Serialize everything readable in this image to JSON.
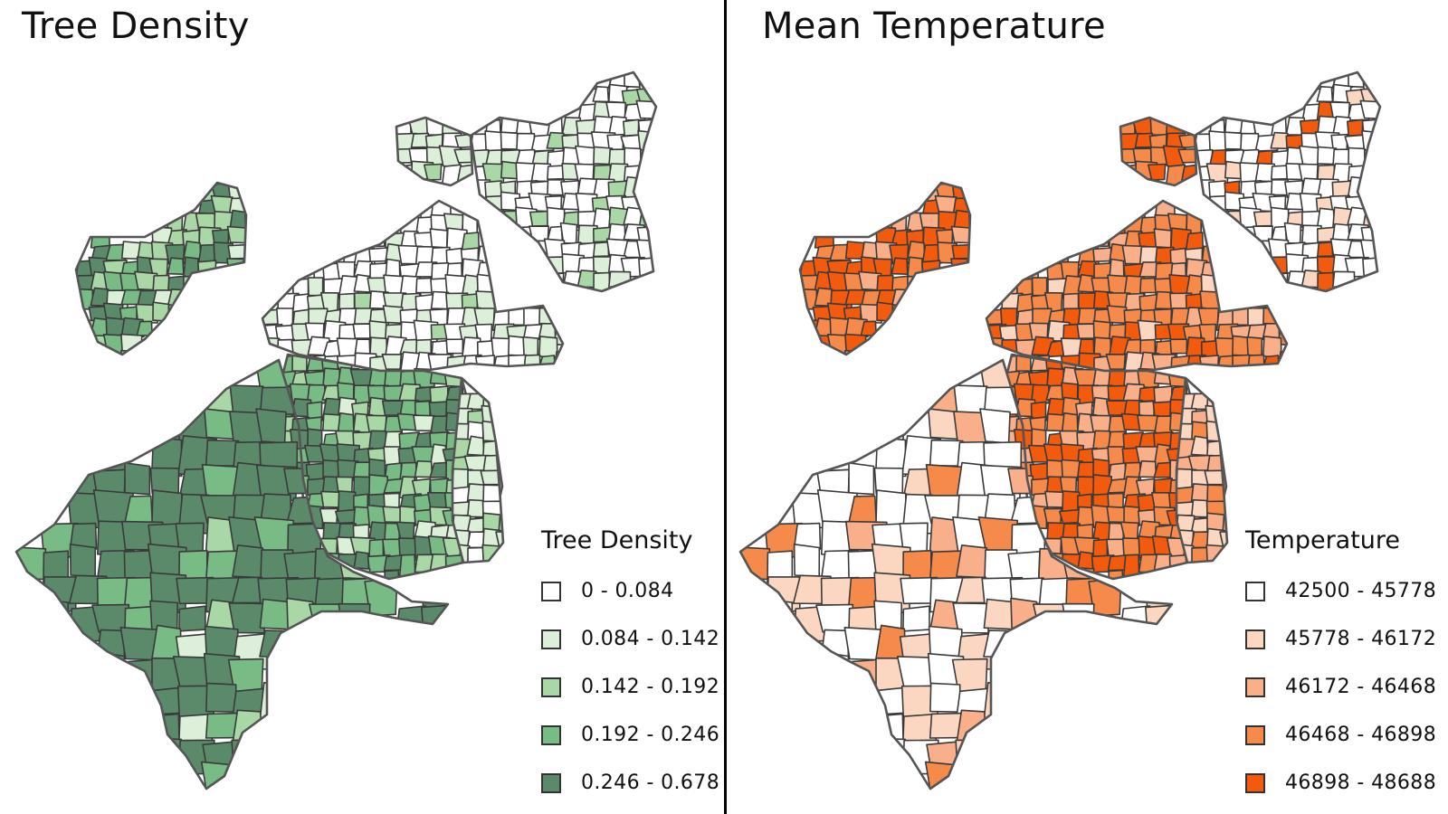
{
  "panels": [
    {
      "title": "Tree Density",
      "legend_title": "Tree Density",
      "classes": [
        {
          "label": "0 - 0.084",
          "color": "#ffffff"
        },
        {
          "label": "0.084 - 0.142",
          "color": "#dcefd8"
        },
        {
          "label": "0.142 - 0.192",
          "color": "#a9d8a6"
        },
        {
          "label": "0.192 - 0.246",
          "color": "#78bb85"
        },
        {
          "label": "0.246 - 0.678",
          "color": "#5b8a6a"
        }
      ]
    },
    {
      "title": "Mean Temperature",
      "legend_title": "Temperature",
      "classes": [
        {
          "label": "42500 - 45778",
          "color": "#ffffff"
        },
        {
          "label": "45778 - 46172",
          "color": "#fbd7c2"
        },
        {
          "label": "46172 - 46468",
          "color": "#f9b08a"
        },
        {
          "label": "46468 - 46898",
          "color": "#f68a4b"
        },
        {
          "label": "46898 - 48688",
          "color": "#f25a0e"
        }
      ]
    }
  ]
}
